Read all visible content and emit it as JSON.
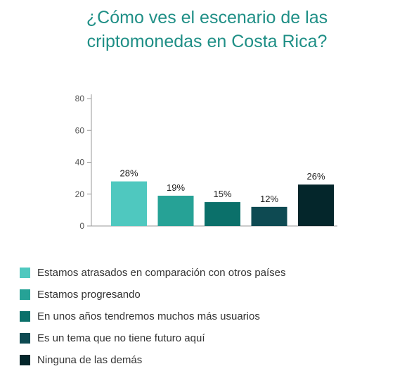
{
  "title_lines": [
    "¿Cómo ves el escenario de las",
    "criptomonedas en Costa Rica?"
  ],
  "colors": {
    "title": "#1f8f86",
    "axis": "#9a9a9a",
    "tick_text": "#555555",
    "label_text": "#222222"
  },
  "chart_data": {
    "type": "bar",
    "title": "¿Cómo ves el escenario de las criptomonedas en Costa Rica?",
    "xlabel": "",
    "ylabel": "",
    "ylim": [
      0,
      80
    ],
    "yticks": [
      0,
      20,
      40,
      60,
      80
    ],
    "grid": false,
    "legend_position": "bottom-left",
    "categories": [
      "Estamos atrasados en comparación con otros países",
      "Estamos progresando",
      "En unos años tendremos muchos más usuarios",
      "Es un tema que no tiene futuro aquí",
      "Ninguna de las demás"
    ],
    "values": [
      28,
      19,
      15,
      12,
      26
    ],
    "data_labels": [
      "28%",
      "19%",
      "15%",
      "12%",
      "26%"
    ],
    "colors": [
      "#4fc8bf",
      "#26a296",
      "#0b706a",
      "#0e4a52",
      "#04262b"
    ]
  }
}
